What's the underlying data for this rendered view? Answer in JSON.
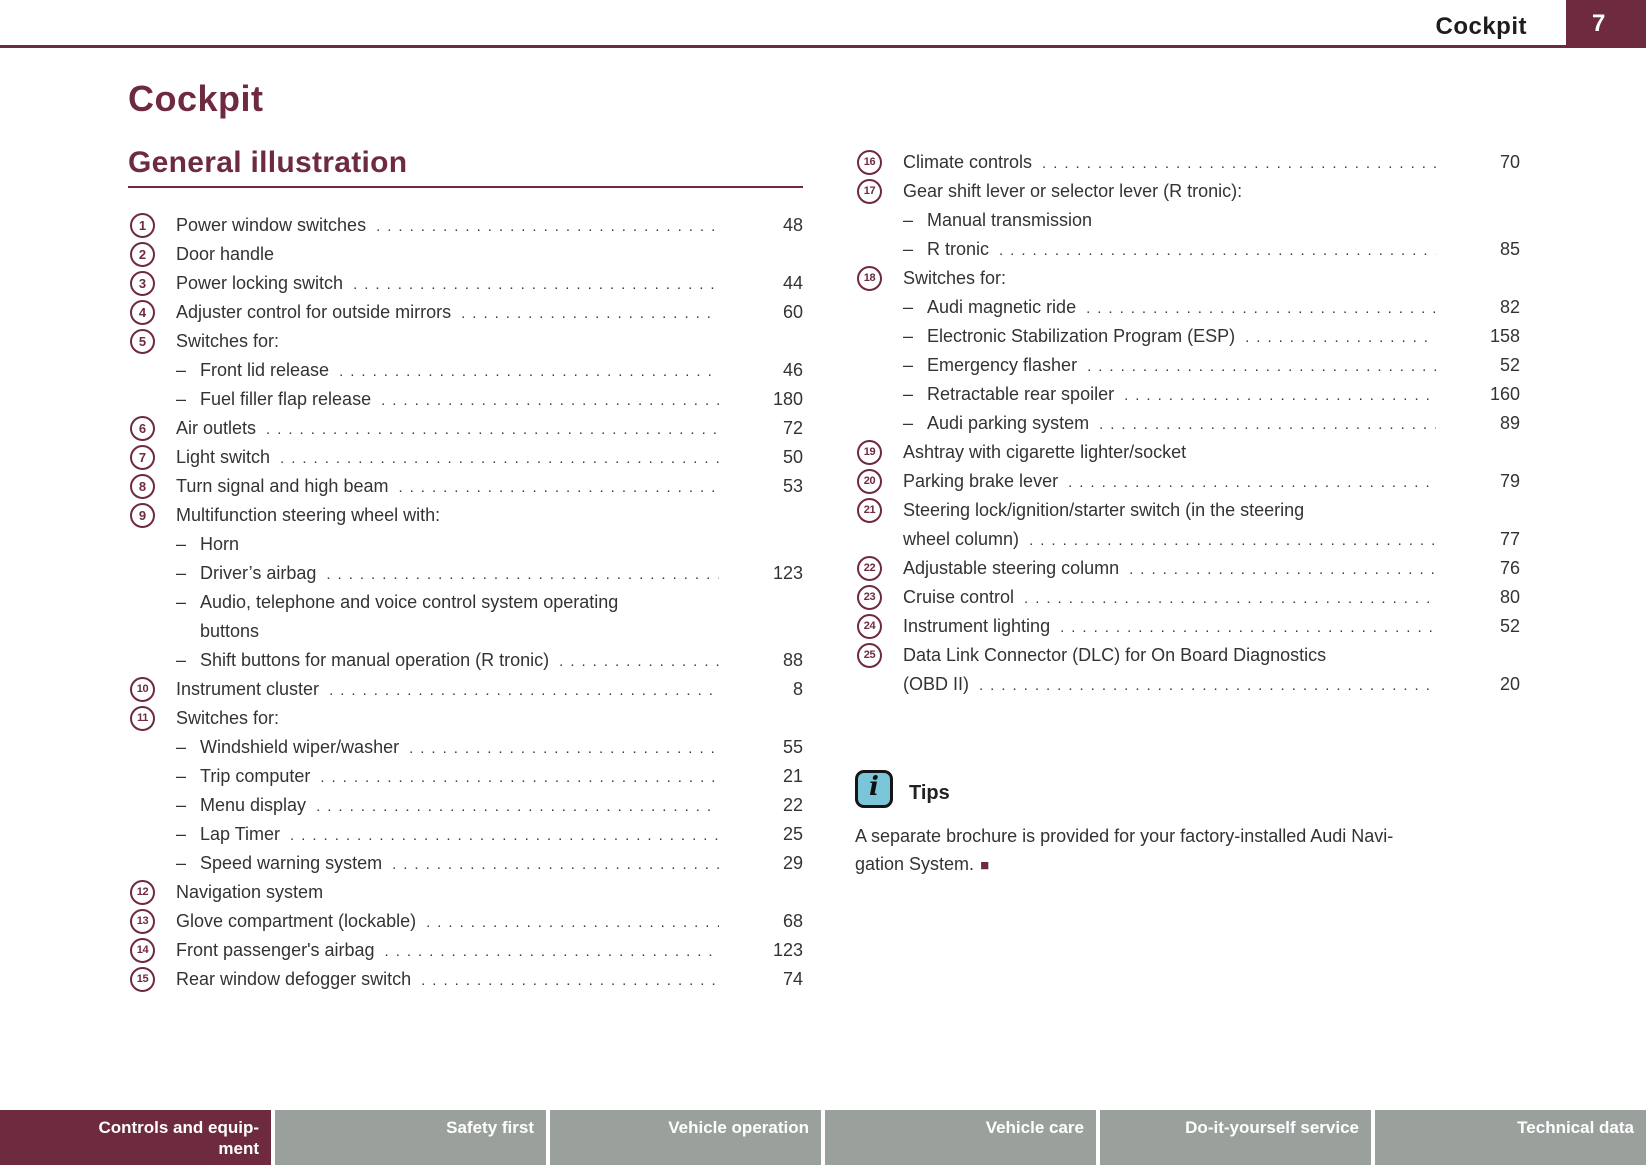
{
  "header": {
    "section": "Cockpit",
    "page_number": "7"
  },
  "page_title": "Cockpit",
  "section_title": "General illustration",
  "columns": {
    "left": {
      "items": [
        {
          "num": "1",
          "label": "Power window switches",
          "page": "48"
        },
        {
          "num": "2",
          "label": "Door handle"
        },
        {
          "num": "3",
          "label": "Power locking switch",
          "page": "44"
        },
        {
          "num": "4",
          "label": "Adjuster control for outside mirrors",
          "page": "60"
        },
        {
          "num": "5",
          "label": "Switches for:"
        },
        {
          "sub": true,
          "label": "Front lid release",
          "page": "46"
        },
        {
          "sub": true,
          "label": "Fuel filler flap release",
          "page": "180"
        },
        {
          "num": "6",
          "label": "Air outlets",
          "page": "72"
        },
        {
          "num": "7",
          "label": "Light switch",
          "page": "50"
        },
        {
          "num": "8",
          "label": "Turn signal and high beam",
          "page": "53"
        },
        {
          "num": "9",
          "label": "Multifunction steering wheel with:"
        },
        {
          "sub": true,
          "label": "Horn"
        },
        {
          "sub": true,
          "label": "Driver’s airbag",
          "page": "123"
        },
        {
          "sub": true,
          "label": "Audio, telephone and voice control system operating",
          "label2": "buttons"
        },
        {
          "sub": true,
          "label": "Shift buttons for manual operation (R tronic)",
          "page": "88"
        },
        {
          "num": "10",
          "label": "Instrument cluster",
          "page": "8"
        },
        {
          "num": "11",
          "label": "Switches for:"
        },
        {
          "sub": true,
          "label": "Windshield wiper/washer",
          "page": "55"
        },
        {
          "sub": true,
          "label": "Trip computer",
          "page": "21"
        },
        {
          "sub": true,
          "label": "Menu display",
          "page": "22"
        },
        {
          "sub": true,
          "label": "Lap Timer",
          "page": "25"
        },
        {
          "sub": true,
          "label": "Speed warning system",
          "page": "29"
        },
        {
          "num": "12",
          "label": "Navigation system"
        },
        {
          "num": "13",
          "label": "Glove compartment (lockable)",
          "page": "68"
        },
        {
          "num": "14",
          "label": "Front passenger's airbag",
          "page": "123"
        },
        {
          "num": "15",
          "label": "Rear window defogger switch",
          "page": "74"
        }
      ]
    },
    "right": {
      "items": [
        {
          "num": "16",
          "label": "Climate controls",
          "page": "70"
        },
        {
          "num": "17",
          "label": "Gear shift lever or selector lever (R tronic):"
        },
        {
          "sub": true,
          "label": "Manual transmission"
        },
        {
          "sub": true,
          "label": "R tronic",
          "page": "85"
        },
        {
          "num": "18",
          "label": "Switches for:"
        },
        {
          "sub": true,
          "label": "Audi magnetic ride",
          "page": "82"
        },
        {
          "sub": true,
          "label": "Electronic Stabilization Program (ESP)",
          "page": "158"
        },
        {
          "sub": true,
          "label": "Emergency flasher",
          "page": "52"
        },
        {
          "sub": true,
          "label": "Retractable rear spoiler",
          "page": "160"
        },
        {
          "sub": true,
          "label": "Audi parking system",
          "page": "89"
        },
        {
          "num": "19",
          "label": "Ashtray with cigarette lighter/socket"
        },
        {
          "num": "20",
          "label": "Parking brake lever",
          "page": "79"
        },
        {
          "num": "21",
          "label": "Steering lock/ignition/starter switch (in the steering",
          "label2": "wheel column)",
          "page": "77"
        },
        {
          "num": "22",
          "label": "Adjustable steering column",
          "page": "76"
        },
        {
          "num": "23",
          "label": "Cruise control",
          "page": "80"
        },
        {
          "num": "24",
          "label": "Instrument lighting",
          "page": "52"
        },
        {
          "num": "25",
          "label": "Data Link Connector (DLC) for On Board Diagnostics",
          "label2": "(OBD II)",
          "page": "20"
        }
      ]
    }
  },
  "tips": {
    "title": "Tips",
    "icon": "info-icon",
    "icon_glyph": "i",
    "line1": "A separate brochure is provided for your factory-installed Audi Navi-",
    "line2": "gation System.",
    "end_marker": "■"
  },
  "footer": {
    "tabs": [
      {
        "label_lines": [
          "Controls and equip-",
          "ment"
        ],
        "active": true
      },
      {
        "label_lines": [
          "Safety first"
        ],
        "active": false
      },
      {
        "label_lines": [
          "Vehicle operation"
        ],
        "active": false
      },
      {
        "label_lines": [
          "Vehicle care"
        ],
        "active": false
      },
      {
        "label_lines": [
          "Do-it-yourself service"
        ],
        "active": false
      },
      {
        "label_lines": [
          "Technical data"
        ],
        "active": false
      }
    ]
  },
  "colors": {
    "accent_maroon": "#6e2a3e",
    "footer_gray": "#9aa19c",
    "tips_icon_blue": "#7ac5d8"
  }
}
